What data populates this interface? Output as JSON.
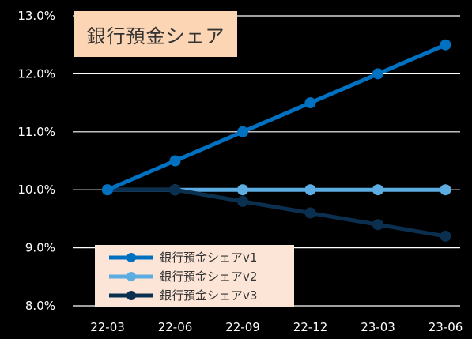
{
  "chart_data": {
    "type": "line",
    "title": "銀行預金シェア",
    "categories": [
      "22-03",
      "22-06",
      "22-09",
      "22-12",
      "23-03",
      "23-06"
    ],
    "ylim": [
      8.0,
      13.0
    ],
    "yticks": [
      "8.0%",
      "9.0%",
      "10.0%",
      "11.0%",
      "12.0%",
      "13.0%"
    ],
    "grid": true,
    "legend_position": "bottom-left",
    "series": [
      {
        "name": "銀行預金シェアv1",
        "values": [
          10.0,
          10.5,
          11.0,
          11.5,
          12.0,
          12.5
        ],
        "color": "#0070C0"
      },
      {
        "name": "銀行預金シェアv2",
        "values": [
          10.0,
          10.0,
          10.0,
          10.0,
          10.0,
          10.0
        ],
        "color": "#5DADE2"
      },
      {
        "name": "銀行預金シェアv3",
        "values": [
          10.0,
          10.0,
          9.8,
          9.6,
          9.4,
          9.2
        ],
        "color": "#0B2F4F"
      }
    ]
  },
  "colors": {
    "background": "#000000",
    "gridline": "#FFFFFF",
    "title_box": "#FCD5B4",
    "legend_box": "#FCE4D6"
  }
}
